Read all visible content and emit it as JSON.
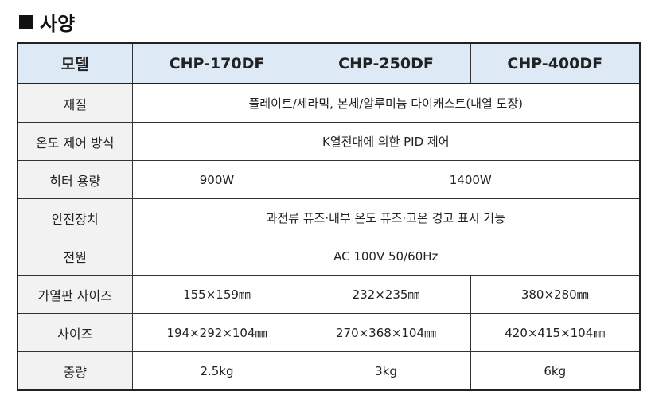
{
  "title": "사양",
  "title_icon": "black-square-icon",
  "colors": {
    "header_bg": "#dde9f5",
    "label_bg": "#f2f2f2"
  },
  "table": {
    "header": [
      "모델",
      "CHP-170DF",
      "CHP-250DF",
      "CHP-400DF"
    ],
    "rows": {
      "material": {
        "label": "재질",
        "value": "플레이트/세라믹, 본체/알루미늄 다이캐스트(내열 도장)"
      },
      "temp_control": {
        "label": "온도 제어 방식",
        "value": "K열전대에 의한 PID 제어"
      },
      "heater": {
        "label": "히터 용량",
        "v1": "900W",
        "v23": "1400W"
      },
      "safety": {
        "label": "안전장치",
        "value": "과전류 퓨즈·내부 온도 퓨즈·고온 경고 표시 기능"
      },
      "power": {
        "label": "전원",
        "value": "AC 100V 50/60Hz"
      },
      "plate_size": {
        "label": "가열판 사이즈",
        "values": [
          "155×159㎜",
          "232×235㎜",
          "380×280㎜"
        ]
      },
      "size": {
        "label": "사이즈",
        "values": [
          "194×292×104㎜",
          "270×368×104㎜",
          "420×415×104㎜"
        ]
      },
      "weight": {
        "label": "중량",
        "values": [
          "2.5kg",
          "3kg",
          "6kg"
        ]
      }
    }
  }
}
